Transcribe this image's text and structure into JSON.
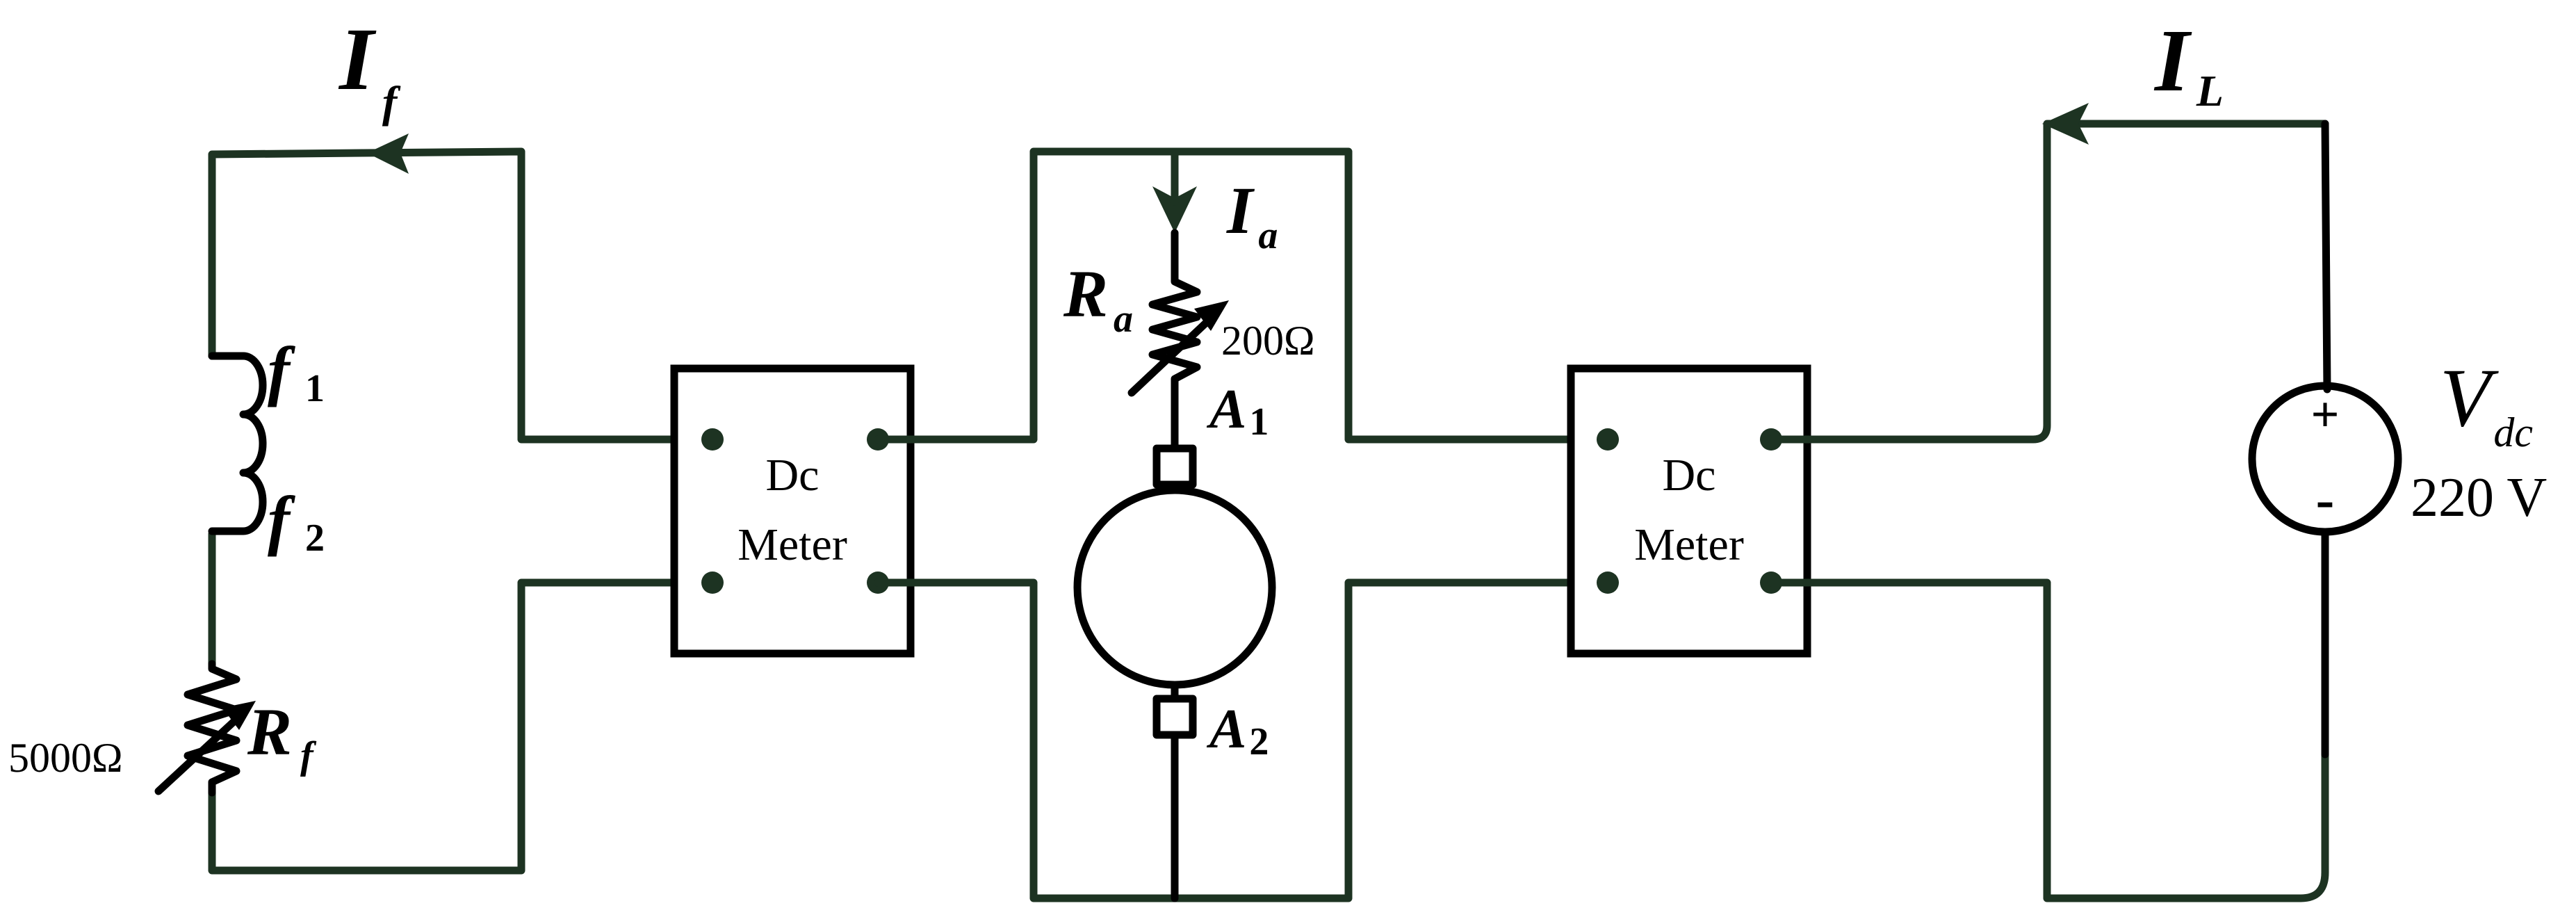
{
  "labels": {
    "if_main": "I",
    "if_sub": "f",
    "il_main": "I",
    "il_sub": "L",
    "ia_main": "I",
    "ia_sub": "a",
    "ra_main": "R",
    "ra_sub": "a",
    "ra_value": "200Ω",
    "rf_main": "R",
    "rf_sub": "f",
    "rf_value": "5000Ω",
    "f1_main": "f",
    "f1_sub": "1",
    "f2_main": "f",
    "f2_sub": "2",
    "a1_main": "A",
    "a1_sub": "1",
    "a2_main": "A",
    "a2_sub": "2",
    "vdc_main": "V",
    "vdc_sub": "dc",
    "vdc_value": "220 V"
  },
  "meters": [
    {
      "line1": "Dc",
      "line2": "Meter"
    },
    {
      "line1": "Dc",
      "line2": "Meter"
    }
  ],
  "source_polarity": {
    "plus": "+",
    "minus": "-"
  },
  "colors": {
    "wire": "#1d3322",
    "component": "#000000",
    "background": "#ffffff"
  }
}
